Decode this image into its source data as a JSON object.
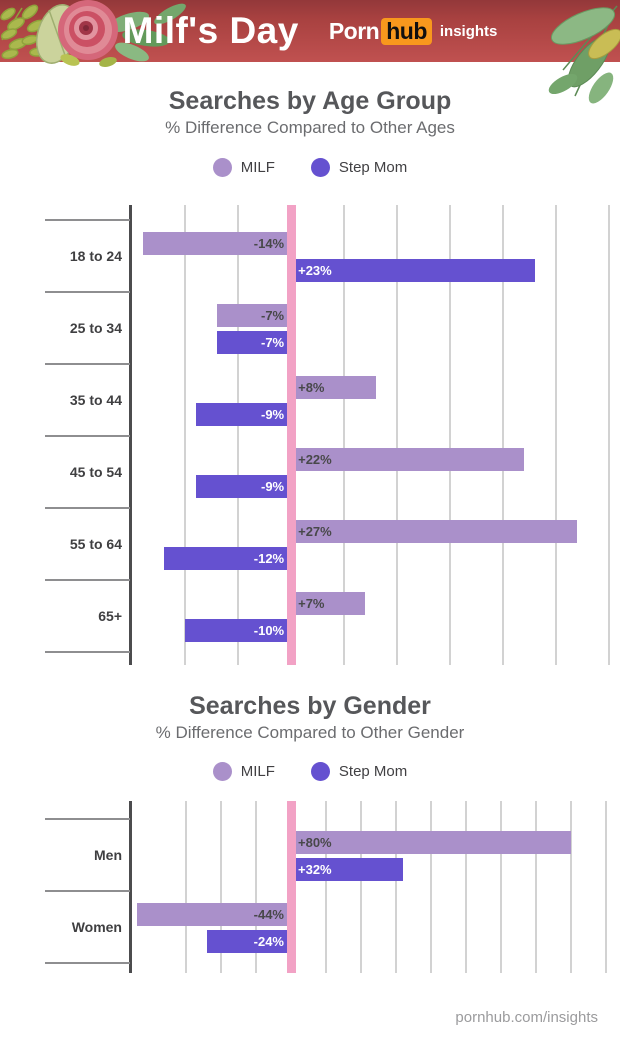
{
  "header": {
    "title": "Milf's Day",
    "logo": {
      "part1": "Porn",
      "part2": "hub",
      "part3": "insights"
    }
  },
  "colors": {
    "milf": "#aa90ca",
    "stepmom": "#6551d0",
    "zero_line": "#f2a2c5",
    "header_red": "#b04644",
    "hub_orange": "#f8981d"
  },
  "chart_data": [
    {
      "type": "bar",
      "orientation": "horizontal",
      "title": "Searches by Age Group",
      "subtitle": "% Difference Compared to Other Ages",
      "categories": [
        "18 to 24",
        "25 to 34",
        "35 to 44",
        "45 to 54",
        "55 to 64",
        "65+"
      ],
      "series": [
        {
          "name": "MILF",
          "color": "#aa90ca",
          "values": [
            -14,
            -7,
            8,
            22,
            27,
            7
          ],
          "labels": [
            "-14%",
            "-7%",
            "+8%",
            "+22%",
            "+27%",
            "+7%"
          ]
        },
        {
          "name": "Step Mom",
          "color": "#6551d0",
          "values": [
            23,
            -7,
            -9,
            -9,
            -12,
            -10
          ],
          "labels": [
            "+23%",
            "-7%",
            "-9%",
            "-9%",
            "-12%",
            "-10%"
          ]
        }
      ],
      "xlim": [
        -15.2,
        30.2
      ],
      "grid_step": 5,
      "zero_line": true,
      "grid": true,
      "legend_position": "top",
      "unit": "%"
    },
    {
      "type": "bar",
      "orientation": "horizontal",
      "title": "Searches by Gender",
      "subtitle": "% Difference Compared to Other Gender",
      "categories": [
        "Men",
        "Women"
      ],
      "series": [
        {
          "name": "MILF",
          "color": "#aa90ca",
          "values": [
            80,
            -44
          ],
          "labels": [
            "+80%",
            "-44%"
          ]
        },
        {
          "name": "Step Mom",
          "color": "#6551d0",
          "values": [
            32,
            -24
          ],
          "labels": [
            "+32%",
            "-24%"
          ]
        }
      ],
      "xlim": [
        -46,
        93
      ],
      "grid_step": 10,
      "zero_line": true,
      "grid": true,
      "legend_position": "top",
      "unit": "%"
    }
  ],
  "footer": {
    "link": "pornhub.com/insights"
  }
}
